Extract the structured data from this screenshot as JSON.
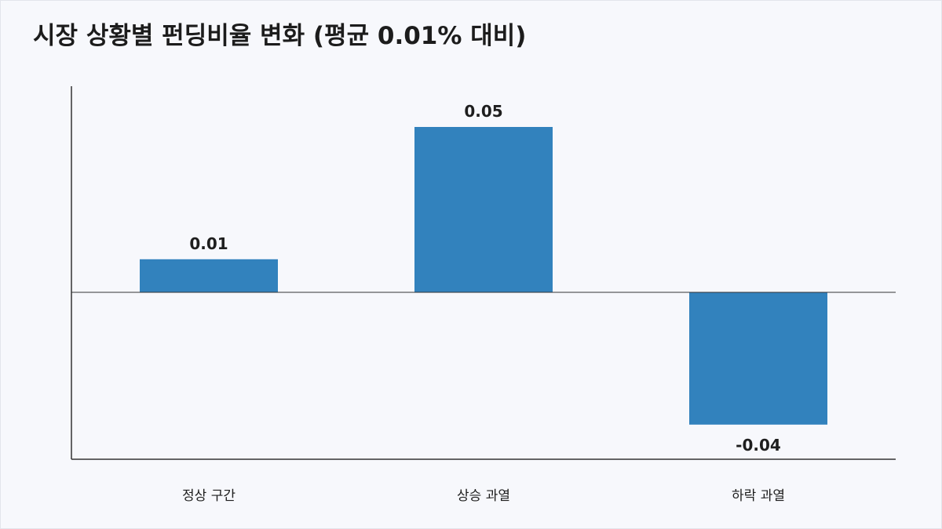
{
  "chart_data": {
    "type": "bar",
    "title": "시장 상황별 펀딩비율 변화 (평균 0.01% 대비)",
    "categories": [
      "정상 구간",
      "상승 과열",
      "하락 과열"
    ],
    "values": [
      0.01,
      0.05,
      -0.04
    ],
    "data_labels": [
      "0.01",
      "0.05",
      "-0.04"
    ],
    "xlabel": "",
    "ylabel": "",
    "ylim": [
      -0.05,
      0.05
    ],
    "grid": false,
    "colors": {
      "bar": "#3282bd",
      "axis": "#333333",
      "background": "#f7f8fc"
    }
  }
}
